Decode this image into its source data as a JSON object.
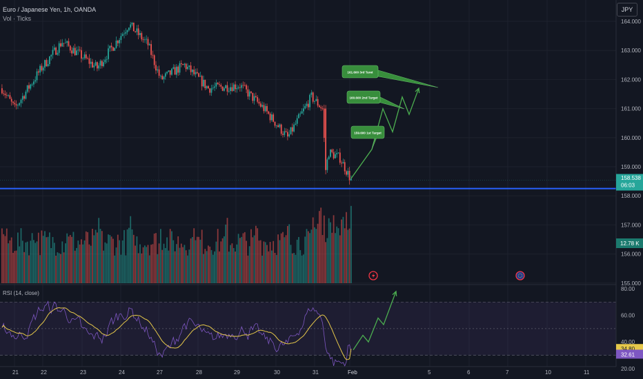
{
  "header": {
    "symbol_title": "Euro / Japanese Yen, 1h, OANDA",
    "volume_label": "Vol · Ticks",
    "currency_button": "JPY"
  },
  "colors": {
    "background": "#131722",
    "up": "#26a69a",
    "down": "#ef5350",
    "support_line": "#2962ff",
    "projection": "#4caf50",
    "rsi_line": "#7e57c2",
    "rsi_ma": "#e6c84a"
  },
  "chart_data": [
    {
      "type": "candlestick",
      "x_tick_labels": [
        "21",
        "22",
        "23",
        "24",
        "27",
        "28",
        "29",
        "30",
        "31",
        "Feb",
        "5",
        "6",
        "7",
        "10",
        "11"
      ],
      "y_ticks": [
        155.0,
        156.0,
        157.0,
        158.0,
        159.0,
        160.0,
        161.0,
        162.0,
        163.0,
        164.0
      ],
      "ylim": [
        155.0,
        164.4
      ],
      "price_path_keypoints": [
        {
          "bar": 0,
          "price": 161.7
        },
        {
          "bar": 8,
          "price": 161.0
        },
        {
          "bar": 25,
          "price": 162.4
        },
        {
          "bar": 38,
          "price": 163.3
        },
        {
          "bar": 60,
          "price": 162.4
        },
        {
          "bar": 80,
          "price": 163.9
        },
        {
          "bar": 92,
          "price": 163.2
        },
        {
          "bar": 100,
          "price": 162.0
        },
        {
          "bar": 115,
          "price": 162.5
        },
        {
          "bar": 130,
          "price": 161.7
        },
        {
          "bar": 150,
          "price": 161.8
        },
        {
          "bar": 165,
          "price": 161.0
        },
        {
          "bar": 180,
          "price": 160.0
        },
        {
          "bar": 195,
          "price": 161.4
        },
        {
          "bar": 202,
          "price": 161.0
        },
        {
          "bar": 204,
          "price": 158.9
        },
        {
          "bar": 206,
          "price": 159.5
        },
        {
          "bar": 213,
          "price": 159.3
        },
        {
          "bar": 220,
          "price": 158.55
        }
      ],
      "horizontal_line": {
        "price": 158.25,
        "color": "#2962ff"
      },
      "last_price": {
        "value": "158.538",
        "countdown": "06:03"
      },
      "targets": [
        {
          "label": "159.600 1st Target",
          "price": 159.6
        },
        {
          "label": "160.600 2nd Target",
          "price": 160.6
        },
        {
          "label": "161.600 3rd Taret",
          "price": 161.6
        }
      ],
      "projection_path": [
        {
          "dx": 0,
          "price": 158.6
        },
        {
          "dx": 30,
          "price": 159.6
        },
        {
          "dx": 46,
          "price": 161.0
        },
        {
          "dx": 60,
          "price": 160.2
        },
        {
          "dx": 74,
          "price": 161.4
        },
        {
          "dx": 84,
          "price": 160.8
        },
        {
          "dx": 98,
          "price": 161.7
        }
      ]
    },
    {
      "type": "bar",
      "name": "Vol · Ticks",
      "last_value_label": "12.78 K"
    },
    {
      "type": "line",
      "name": "RSI (14, close)",
      "y_ticks": [
        20.0,
        40.0,
        60.0,
        80.0
      ],
      "bands": [
        30,
        70
      ],
      "rsi_value": "32.61",
      "ma_value": "34.80",
      "projection_path": [
        {
          "dx": 0,
          "value": 34
        },
        {
          "dx": 14,
          "value": 45
        },
        {
          "dx": 22,
          "value": 40
        },
        {
          "dx": 36,
          "value": 58
        },
        {
          "dx": 44,
          "value": 53
        },
        {
          "dx": 62,
          "value": 78
        }
      ]
    }
  ]
}
